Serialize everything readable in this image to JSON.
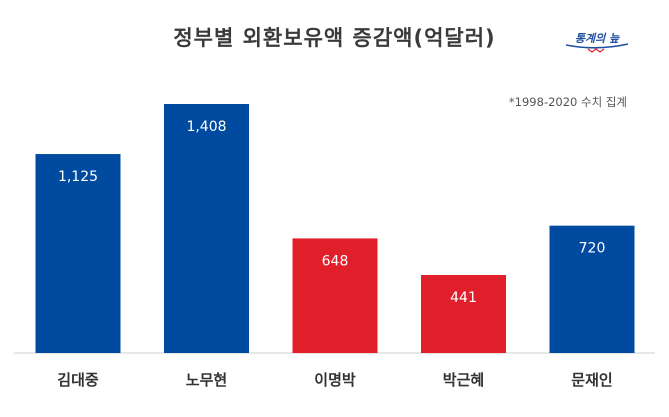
{
  "title": "정부별 외환보유액 증감액(억달러)",
  "logo": {
    "text": "통계의 늪"
  },
  "note": "*1998-2020 수치 집계",
  "colors": {
    "blue": "#004b9f",
    "red": "#e11f2b",
    "axis": "#cfcfcf",
    "label": "#333333"
  },
  "chart_data": {
    "type": "bar",
    "title": "정부별 외환보유액 증감액(억달러)",
    "categories": [
      "김대중",
      "노무현",
      "이명박",
      "박근혜",
      "문재인"
    ],
    "values": [
      1125,
      1408,
      648,
      441,
      720
    ],
    "data_labels": [
      "1,125",
      "1,408",
      "648",
      "441",
      "720"
    ],
    "bar_colors": [
      "#004b9f",
      "#004b9f",
      "#e11f2b",
      "#e11f2b",
      "#004b9f"
    ],
    "ylim": [
      0,
      1408
    ],
    "grid": false,
    "legend": "none"
  }
}
